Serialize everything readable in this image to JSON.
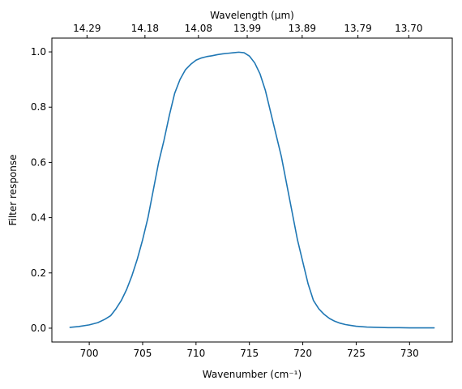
{
  "chart_data": {
    "type": "line",
    "title": "",
    "xlabel": "Wavenumber (cm⁻¹)",
    "ylabel": "Filter response",
    "top_xlabel": "Wavelength (μm)",
    "xlim": [
      696.5,
      734.0
    ],
    "ylim": [
      -0.05,
      1.05
    ],
    "grid": false,
    "x_ticks": [
      700,
      705,
      710,
      715,
      720,
      725,
      730
    ],
    "y_ticks": [
      0.0,
      0.2,
      0.4,
      0.6,
      0.8,
      1.0
    ],
    "y_tick_labels": [
      "0.0",
      "0.2",
      "0.4",
      "0.6",
      "0.8",
      "1.0"
    ],
    "top_ticks": [
      "14.29",
      "14.18",
      "14.08",
      "13.99",
      "13.89",
      "13.79",
      "13.70"
    ],
    "color": "#1f77b4",
    "series": [
      {
        "x": [
          698.2,
          699.0,
          700.0,
          700.8,
          701.5,
          702.0,
          702.5,
          703.0,
          703.5,
          704.0,
          704.5,
          705.0,
          705.5,
          706.0,
          706.5,
          707.0,
          707.5,
          708.0,
          708.5,
          709.0,
          709.5,
          710.0,
          710.5,
          711.0,
          711.5,
          712.0,
          712.5,
          713.0,
          713.5,
          714.0,
          714.5,
          715.0,
          715.5,
          716.0,
          716.5,
          717.0,
          717.5,
          718.0,
          718.5,
          719.0,
          719.5,
          720.0,
          720.5,
          721.0,
          721.5,
          722.0,
          722.5,
          723.0,
          723.5,
          724.0,
          724.5,
          725.0,
          726.0,
          727.0,
          728.0,
          729.0,
          730.0,
          731.0,
          732.3
        ],
        "y": [
          0.003,
          0.006,
          0.012,
          0.02,
          0.033,
          0.045,
          0.07,
          0.1,
          0.14,
          0.19,
          0.25,
          0.32,
          0.4,
          0.5,
          0.6,
          0.68,
          0.77,
          0.85,
          0.9,
          0.935,
          0.955,
          0.97,
          0.978,
          0.983,
          0.986,
          0.99,
          0.993,
          0.995,
          0.997,
          0.999,
          0.997,
          0.985,
          0.96,
          0.92,
          0.86,
          0.78,
          0.7,
          0.62,
          0.52,
          0.42,
          0.32,
          0.24,
          0.16,
          0.1,
          0.07,
          0.05,
          0.035,
          0.025,
          0.018,
          0.013,
          0.01,
          0.007,
          0.004,
          0.003,
          0.002,
          0.002,
          0.001,
          0.001,
          0.001
        ]
      }
    ]
  }
}
